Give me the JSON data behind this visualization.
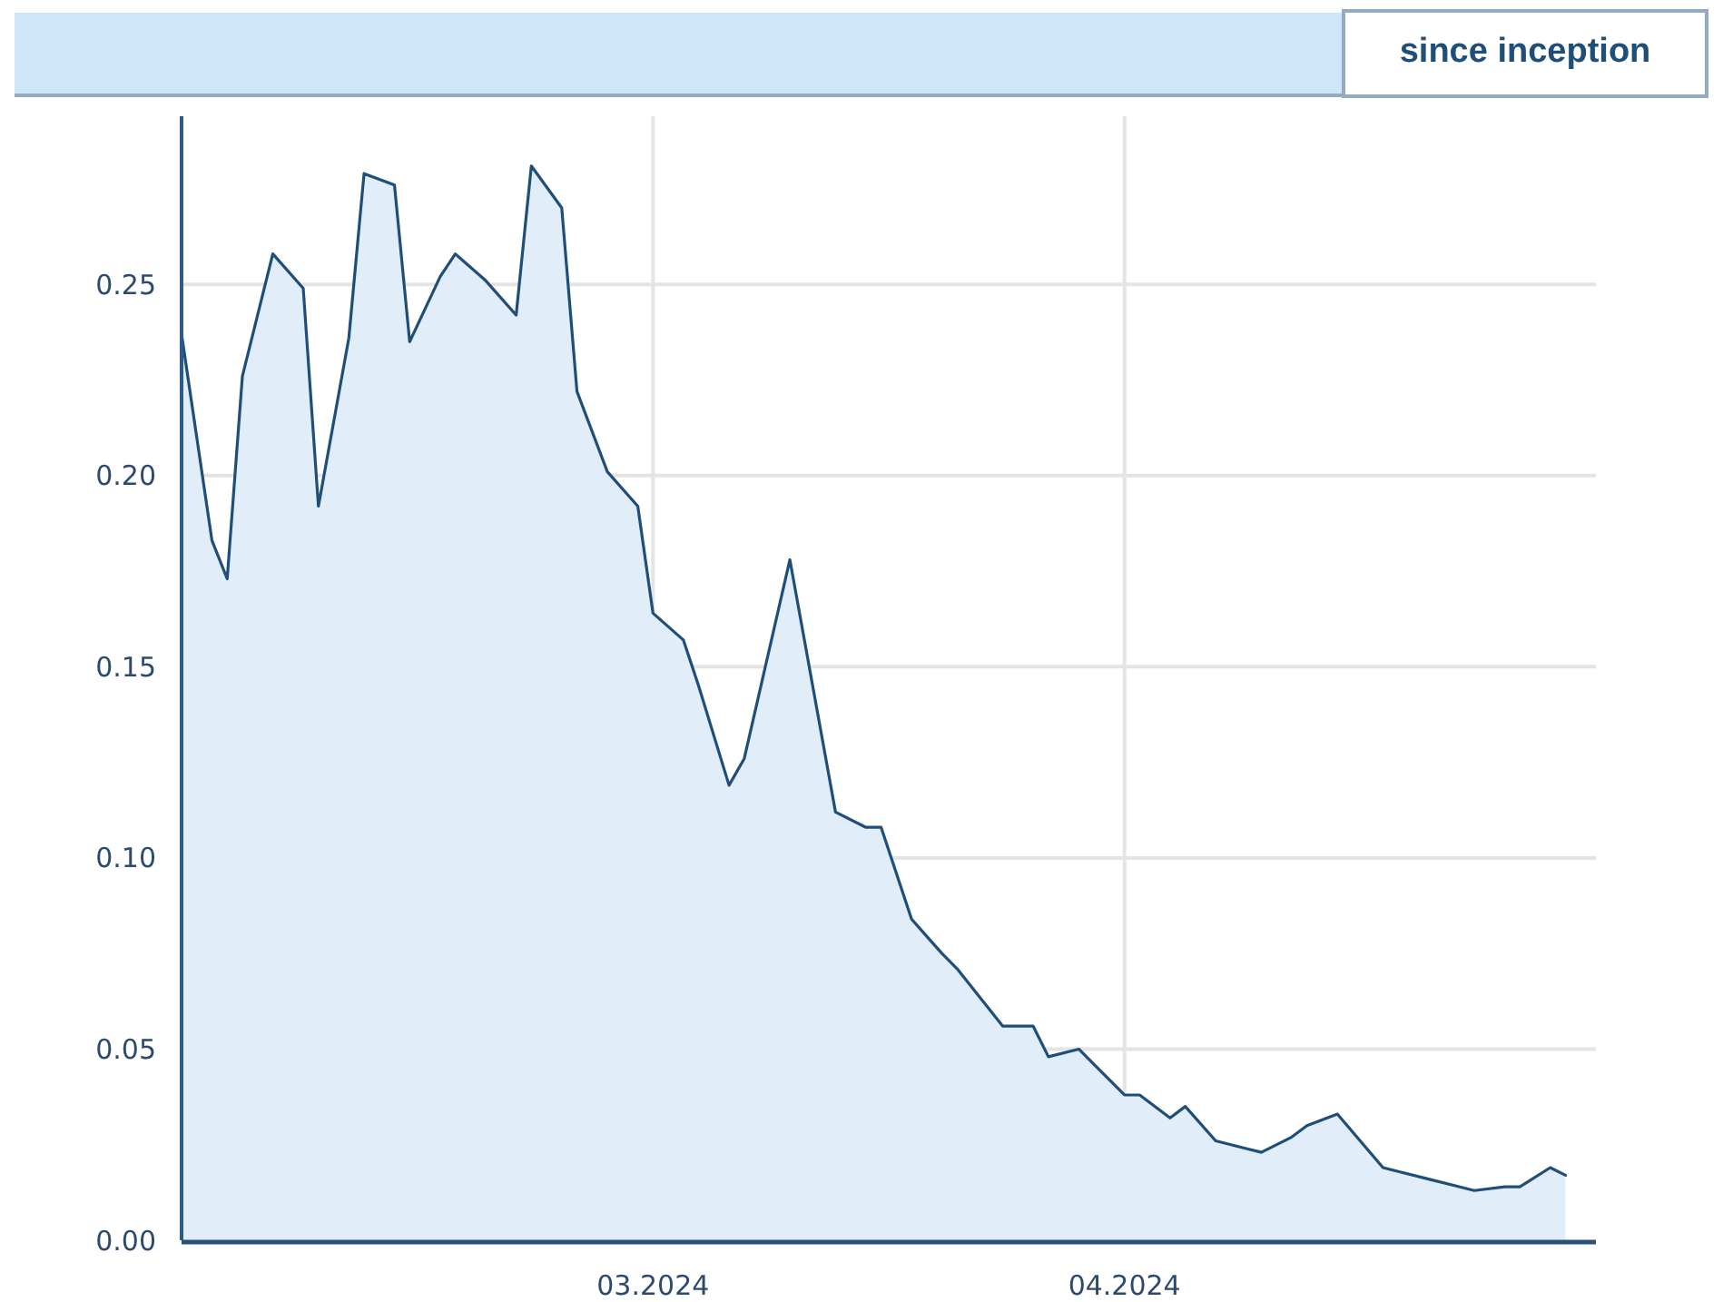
{
  "chart_data": {
    "type": "area",
    "annotations": [
      "since inception"
    ],
    "x": [
      "2024-01-30",
      "2024-02-01",
      "2024-02-02",
      "2024-02-03",
      "2024-02-05",
      "2024-02-07",
      "2024-02-08",
      "2024-02-10",
      "2024-02-11",
      "2024-02-13",
      "2024-02-14",
      "2024-02-16",
      "2024-02-17",
      "2024-02-19",
      "2024-02-21",
      "2024-02-22",
      "2024-02-24",
      "2024-02-25",
      "2024-02-27",
      "2024-02-29",
      "2024-03-01",
      "2024-03-03",
      "2024-03-04",
      "2024-03-06",
      "2024-03-07",
      "2024-03-10",
      "2024-03-13",
      "2024-03-15",
      "2024-03-16",
      "2024-03-18",
      "2024-03-20",
      "2024-03-21",
      "2024-03-24",
      "2024-03-26",
      "2024-03-27",
      "2024-03-29",
      "2024-03-30",
      "2024-04-01",
      "2024-04-02",
      "2024-04-04",
      "2024-04-05",
      "2024-04-07",
      "2024-04-09",
      "2024-04-10",
      "2024-04-12",
      "2024-04-13",
      "2024-04-15",
      "2024-04-18",
      "2024-04-19",
      "2024-04-21",
      "2024-04-23",
      "2024-04-24",
      "2024-04-26",
      "2024-04-27",
      "2024-04-29",
      "2024-04-30"
    ],
    "values": [
      0.237,
      0.183,
      0.173,
      0.226,
      0.258,
      0.249,
      0.192,
      0.236,
      0.279,
      0.276,
      0.235,
      0.252,
      0.258,
      0.251,
      0.242,
      0.281,
      0.27,
      0.222,
      0.201,
      0.192,
      0.164,
      0.157,
      0.145,
      0.119,
      0.126,
      0.178,
      0.112,
      0.108,
      0.108,
      0.084,
      0.075,
      0.071,
      0.056,
      0.056,
      0.048,
      0.05,
      0.046,
      0.038,
      0.038,
      0.032,
      0.035,
      0.026,
      0.024,
      0.023,
      0.027,
      0.03,
      0.033,
      0.019,
      0.018,
      0.016,
      0.014,
      0.013,
      0.014,
      0.014,
      0.019,
      0.017
    ],
    "color": "#1f4e79",
    "xlim": [
      "2024-01-30",
      "2024-05-02"
    ],
    "xticks": [
      {
        "value": "2024-03-01",
        "label": "03.2024"
      },
      {
        "value": "2024-04-01",
        "label": "04.2024"
      }
    ],
    "ylim": [
      0,
      0.294
    ],
    "yticks": [
      {
        "value": 0,
        "label": "0.00"
      },
      {
        "value": 0.05,
        "label": "0.05"
      },
      {
        "value": 0.1,
        "label": "0.10"
      },
      {
        "value": 0.15,
        "label": "0.15"
      },
      {
        "value": 0.2,
        "label": "0.20"
      },
      {
        "value": 0.25,
        "label": "0.25"
      }
    ],
    "grid": true
  }
}
